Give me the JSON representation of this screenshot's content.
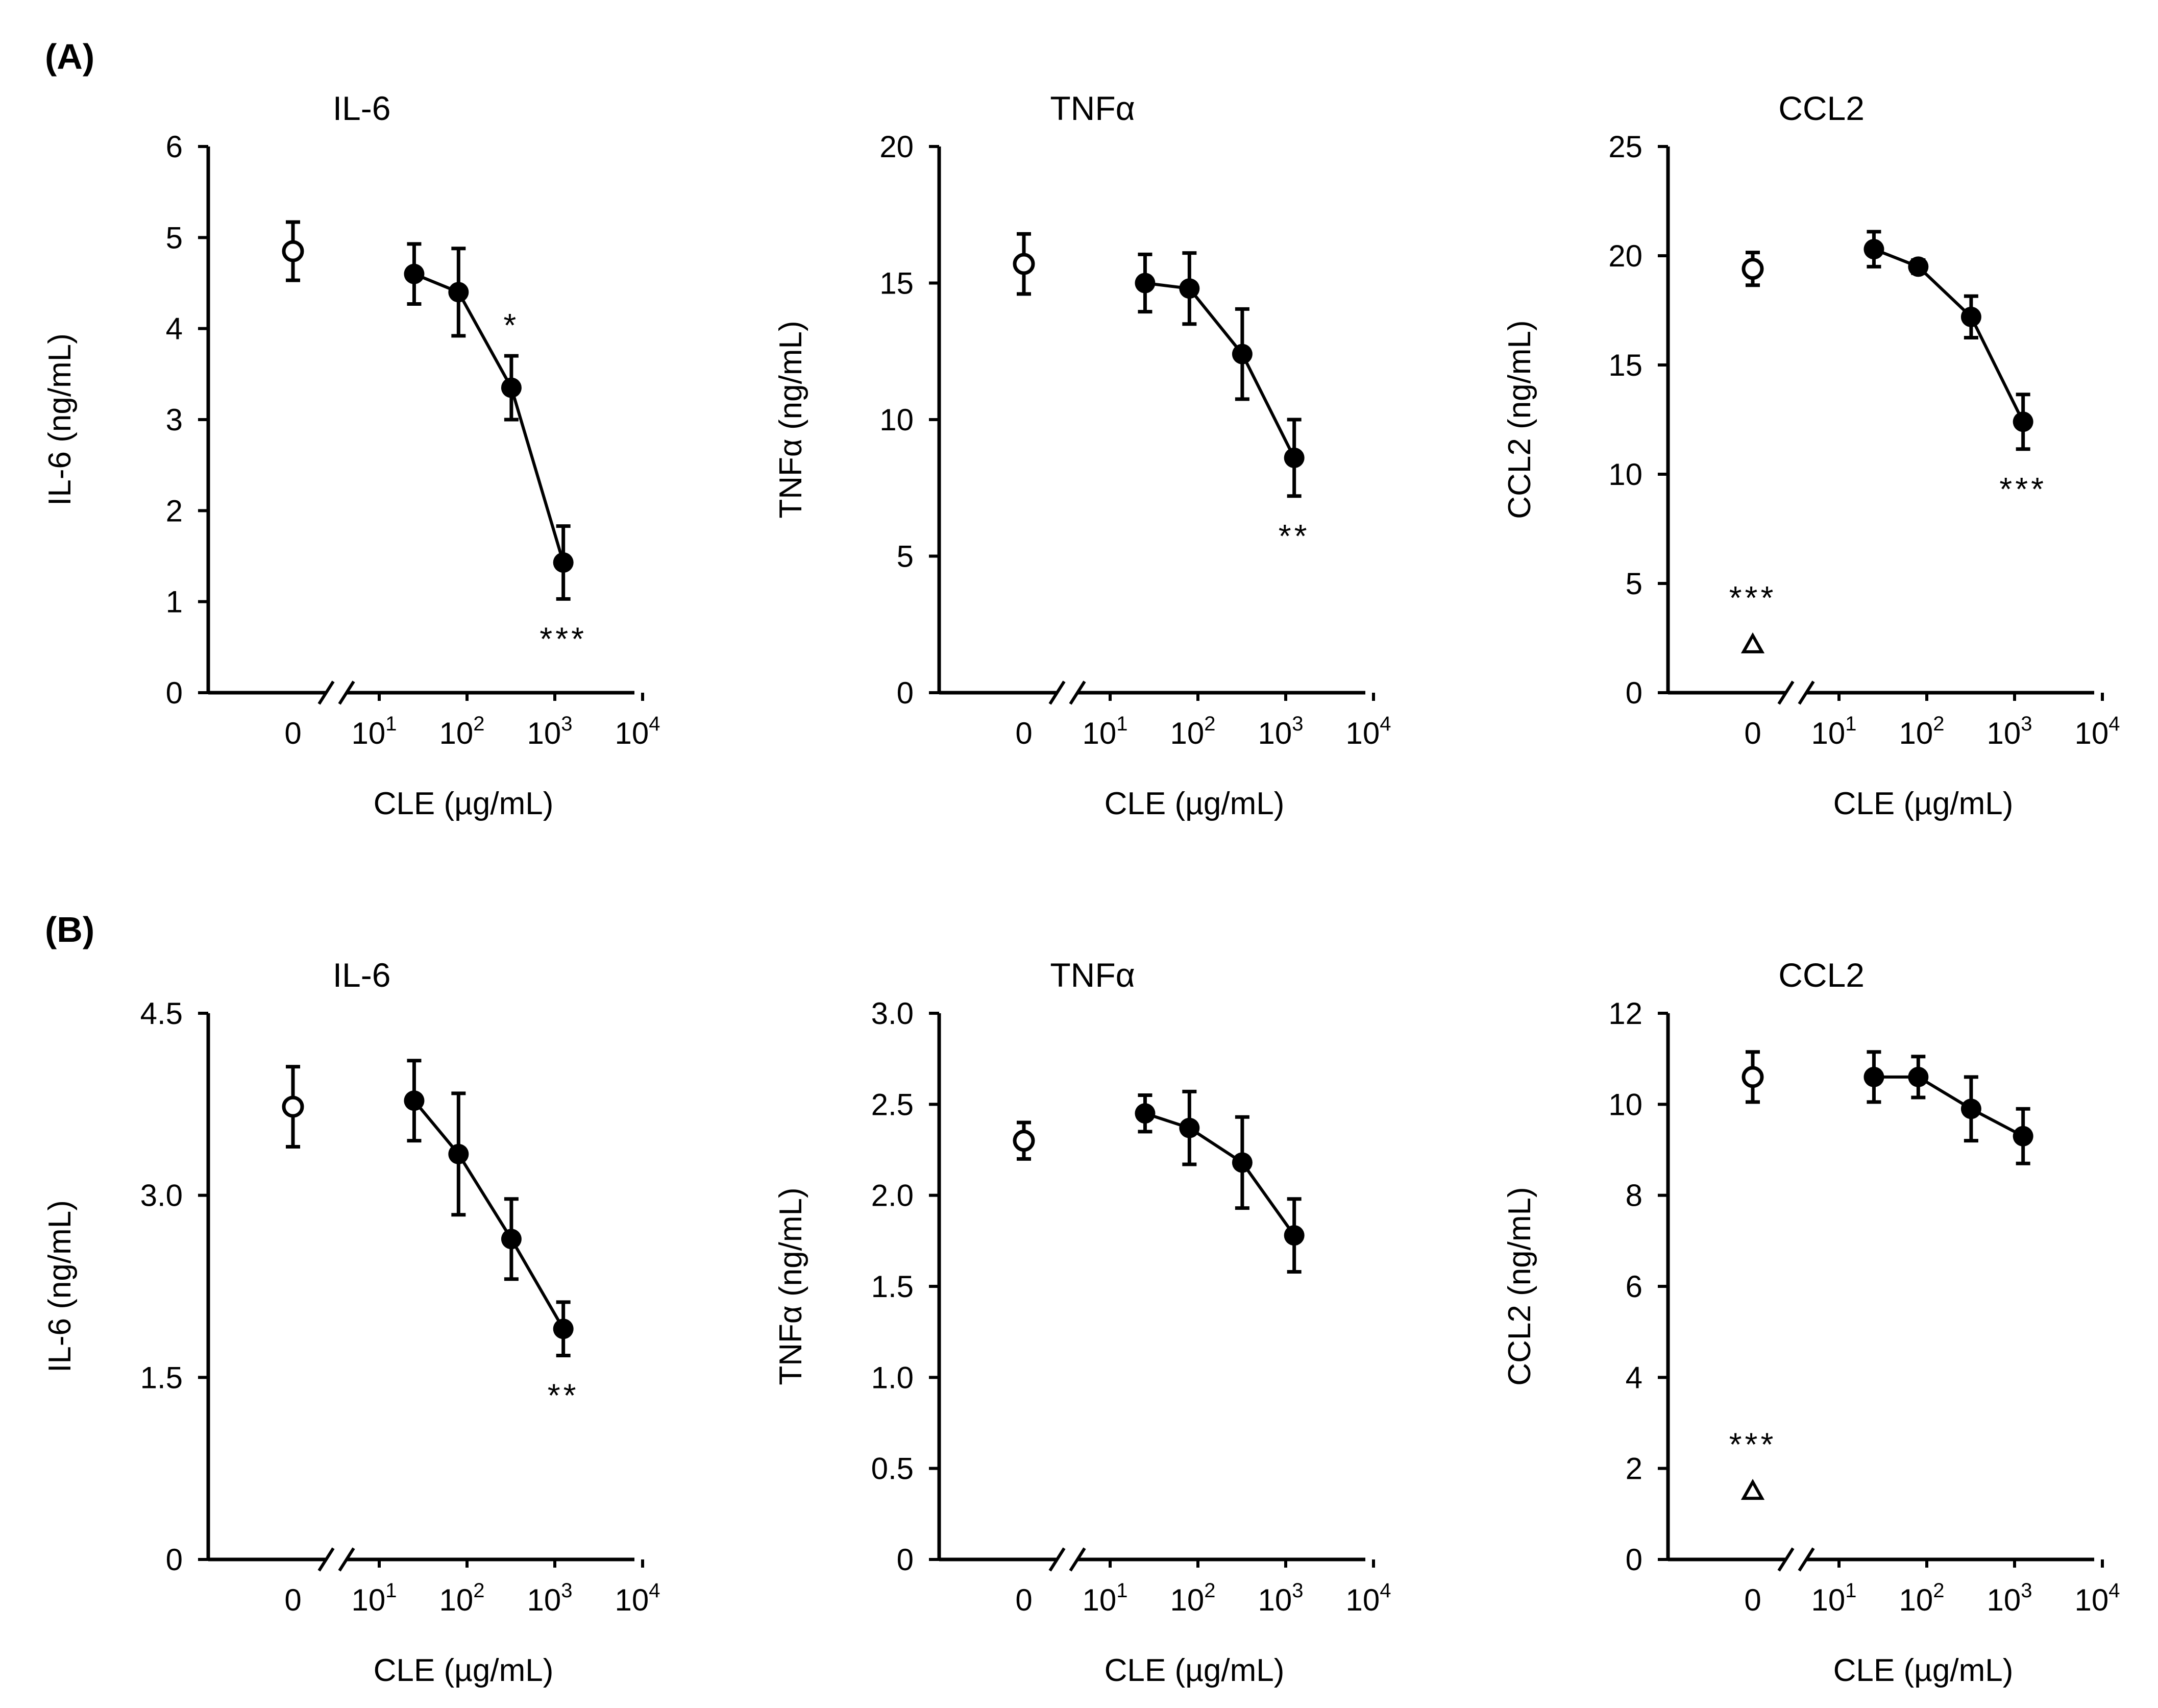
{
  "panels": [
    {
      "label": "(A)"
    },
    {
      "label": "(B)"
    }
  ],
  "chart_data": [
    {
      "panel": "(A)",
      "type": "line",
      "title": "IL-6",
      "xlabel": "CLE (µg/mL)",
      "ylabel": "IL-6 (ng/mL)",
      "ylim": [
        0,
        6
      ],
      "yticks": [
        "0",
        "1",
        "2",
        "3",
        "4",
        "5",
        "6"
      ],
      "xticks": [
        "0",
        "10",
        "10",
        "10",
        "10"
      ],
      "xtick_exponents": [
        "",
        "1",
        "2",
        "3",
        "4"
      ],
      "control": {
        "value": 4.85,
        "error": 0.32
      },
      "series": [
        {
          "name": "CLE",
          "x": [
            25,
            80,
            320,
            1250
          ],
          "values": [
            4.6,
            4.4,
            3.35,
            1.43
          ],
          "errors": [
            0.33,
            0.48,
            0.35,
            0.4
          ]
        }
      ],
      "annotations": [
        {
          "x": 320,
          "text": "*",
          "pos": "above"
        },
        {
          "x": 1250,
          "text": "***",
          "pos": "below"
        }
      ]
    },
    {
      "panel": "(A)",
      "type": "line",
      "title": "TNFα",
      "xlabel": "CLE (µg/mL)",
      "ylabel": "TNFα (ng/mL)",
      "ylim": [
        0,
        20
      ],
      "yticks": [
        "0",
        "5",
        "10",
        "15",
        "20"
      ],
      "xticks": [
        "0",
        "10",
        "10",
        "10",
        "10"
      ],
      "xtick_exponents": [
        "",
        "1",
        "2",
        "3",
        "4"
      ],
      "control": {
        "value": 15.7,
        "error": 1.1
      },
      "series": [
        {
          "name": "CLE",
          "x": [
            25,
            80,
            320,
            1250
          ],
          "values": [
            15.0,
            14.8,
            12.4,
            8.6
          ],
          "errors": [
            1.05,
            1.3,
            1.65,
            1.4
          ]
        }
      ],
      "annotations": [
        {
          "x": 1250,
          "text": "**",
          "pos": "below"
        }
      ]
    },
    {
      "panel": "(A)",
      "type": "line",
      "title": "CCL2",
      "xlabel": "CLE (µg/mL)",
      "ylabel": "CCL2 (ng/mL)",
      "ylim": [
        0,
        25
      ],
      "yticks": [
        "0",
        "5",
        "10",
        "15",
        "20",
        "25"
      ],
      "xticks": [
        "0",
        "10",
        "10",
        "10",
        "10"
      ],
      "xtick_exponents": [
        "",
        "1",
        "2",
        "3",
        "4"
      ],
      "control": {
        "value": 19.4,
        "error": 0.75
      },
      "unstimulated": {
        "value": 2.2,
        "error": 0,
        "label": "***"
      },
      "series": [
        {
          "name": "CLE",
          "x": [
            25,
            80,
            320,
            1250
          ],
          "values": [
            20.3,
            19.5,
            17.2,
            12.4
          ],
          "errors": [
            0.8,
            0.3,
            0.95,
            1.25
          ]
        }
      ],
      "annotations": [
        {
          "x": 1250,
          "text": "***",
          "pos": "below"
        }
      ]
    },
    {
      "panel": "(B)",
      "type": "line",
      "title": "IL-6",
      "xlabel": "CLE (µg/mL)",
      "ylabel": "IL-6 (ng/mL)",
      "ylim": [
        0,
        4.5
      ],
      "yticks": [
        "0",
        "1.5",
        "3.0",
        "4.5"
      ],
      "xticks": [
        "0",
        "10",
        "10",
        "10",
        "10"
      ],
      "xtick_exponents": [
        "",
        "1",
        "2",
        "3",
        "4"
      ],
      "control": {
        "value": 3.73,
        "error": 0.33
      },
      "series": [
        {
          "name": "CLE",
          "x": [
            25,
            80,
            320,
            1250
          ],
          "values": [
            3.78,
            3.34,
            2.64,
            1.9
          ],
          "errors": [
            0.33,
            0.5,
            0.33,
            0.22
          ]
        }
      ],
      "annotations": [
        {
          "x": 1250,
          "text": "**",
          "pos": "below"
        }
      ]
    },
    {
      "panel": "(B)",
      "type": "line",
      "title": "TNFα",
      "xlabel": "CLE (µg/mL)",
      "ylabel": "TNFα (ng/mL)",
      "ylim": [
        0,
        3.0
      ],
      "yticks": [
        "0",
        "0.5",
        "1.0",
        "1.5",
        "2.0",
        "2.5",
        "3.0"
      ],
      "xticks": [
        "0",
        "10",
        "10",
        "10",
        "10"
      ],
      "xtick_exponents": [
        "",
        "1",
        "2",
        "3",
        "4"
      ],
      "control": {
        "value": 2.3,
        "error": 0.1
      },
      "series": [
        {
          "name": "CLE",
          "x": [
            25,
            80,
            320,
            1250
          ],
          "values": [
            2.45,
            2.37,
            2.18,
            1.78
          ],
          "errors": [
            0.1,
            0.2,
            0.25,
            0.2
          ]
        }
      ],
      "annotations": []
    },
    {
      "panel": "(B)",
      "type": "line",
      "title": "CCL2",
      "xlabel": "CLE (µg/mL)",
      "ylabel": "CCL2 (ng/mL)",
      "ylim": [
        0,
        12
      ],
      "yticks": [
        "0",
        "2",
        "4",
        "6",
        "8",
        "10",
        "12"
      ],
      "xticks": [
        "0",
        "10",
        "10",
        "10",
        "10"
      ],
      "xtick_exponents": [
        "",
        "1",
        "2",
        "3",
        "4"
      ],
      "control": {
        "value": 10.6,
        "error": 0.55
      },
      "unstimulated": {
        "value": 1.5,
        "error": 0,
        "label": "***"
      },
      "series": [
        {
          "name": "CLE",
          "x": [
            25,
            80,
            320,
            1250
          ],
          "values": [
            10.6,
            10.6,
            9.9,
            9.3
          ],
          "errors": [
            0.55,
            0.45,
            0.7,
            0.6
          ]
        }
      ],
      "annotations": []
    }
  ]
}
